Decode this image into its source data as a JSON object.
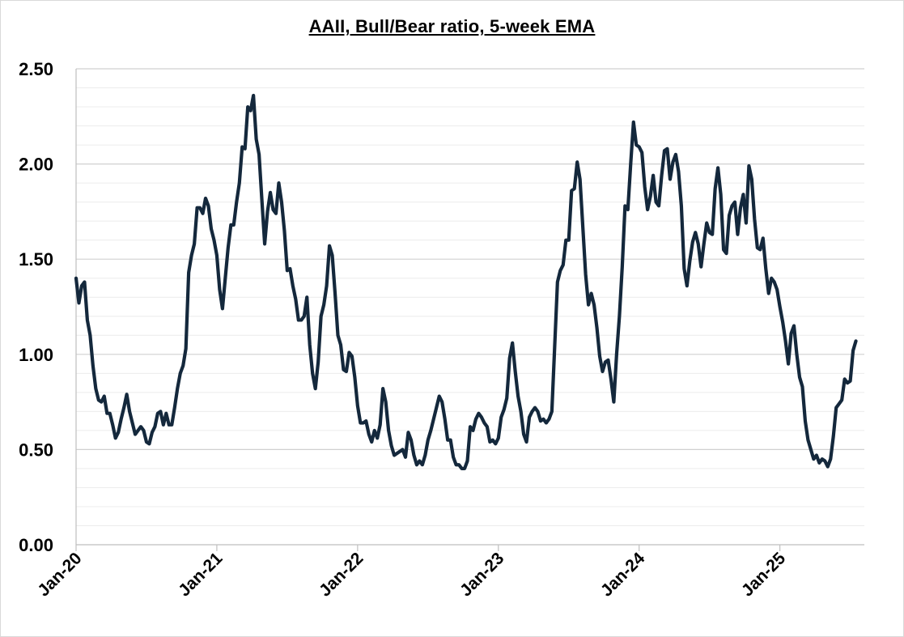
{
  "chart_data": {
    "type": "line",
    "title": "AAII, Bull/Bear ratio, 5-week EMA",
    "xlabel": "",
    "ylabel": "",
    "ylim": [
      0,
      2.5
    ],
    "yticks": [
      "0.00",
      "0.50",
      "1.00",
      "1.50",
      "2.00",
      "2.50"
    ],
    "xticks": [
      "Jan-20",
      "Jan-21",
      "Jan-22",
      "Jan-23",
      "Jan-24",
      "Jan-25"
    ],
    "x_start_year": 2020,
    "x_end_year": 2025.6,
    "line_color": "#14283c",
    "grid": true,
    "series": [
      {
        "name": "Bull/Bear ratio, 5-week EMA",
        "points": [
          [
            2020.0,
            1.4
          ],
          [
            2020.02,
            1.27
          ],
          [
            2020.04,
            1.36
          ],
          [
            2020.06,
            1.38
          ],
          [
            2020.08,
            1.18
          ],
          [
            2020.1,
            1.1
          ],
          [
            2020.12,
            0.94
          ],
          [
            2020.14,
            0.82
          ],
          [
            2020.16,
            0.76
          ],
          [
            2020.18,
            0.75
          ],
          [
            2020.2,
            0.78
          ],
          [
            2020.22,
            0.69
          ],
          [
            2020.24,
            0.69
          ],
          [
            2020.26,
            0.63
          ],
          [
            2020.28,
            0.56
          ],
          [
            2020.3,
            0.59
          ],
          [
            2020.32,
            0.66
          ],
          [
            2020.34,
            0.72
          ],
          [
            2020.36,
            0.79
          ],
          [
            2020.38,
            0.7
          ],
          [
            2020.4,
            0.64
          ],
          [
            2020.42,
            0.58
          ],
          [
            2020.44,
            0.6
          ],
          [
            2020.46,
            0.62
          ],
          [
            2020.48,
            0.6
          ],
          [
            2020.5,
            0.54
          ],
          [
            2020.52,
            0.53
          ],
          [
            2020.54,
            0.59
          ],
          [
            2020.56,
            0.62
          ],
          [
            2020.58,
            0.69
          ],
          [
            2020.6,
            0.7
          ],
          [
            2020.62,
            0.63
          ],
          [
            2020.64,
            0.69
          ],
          [
            2020.66,
            0.63
          ],
          [
            2020.68,
            0.63
          ],
          [
            2020.7,
            0.72
          ],
          [
            2020.72,
            0.82
          ],
          [
            2020.74,
            0.9
          ],
          [
            2020.76,
            0.94
          ],
          [
            2020.78,
            1.03
          ],
          [
            2020.8,
            1.43
          ],
          [
            2020.82,
            1.52
          ],
          [
            2020.84,
            1.58
          ],
          [
            2020.86,
            1.77
          ],
          [
            2020.88,
            1.77
          ],
          [
            2020.9,
            1.74
          ],
          [
            2020.92,
            1.82
          ],
          [
            2020.94,
            1.78
          ],
          [
            2020.96,
            1.66
          ],
          [
            2020.98,
            1.6
          ],
          [
            2021.0,
            1.52
          ],
          [
            2021.02,
            1.34
          ],
          [
            2021.04,
            1.24
          ],
          [
            2021.06,
            1.4
          ],
          [
            2021.08,
            1.56
          ],
          [
            2021.1,
            1.68
          ],
          [
            2021.12,
            1.68
          ],
          [
            2021.14,
            1.8
          ],
          [
            2021.16,
            1.9
          ],
          [
            2021.18,
            2.09
          ],
          [
            2021.2,
            2.08
          ],
          [
            2021.22,
            2.3
          ],
          [
            2021.24,
            2.28
          ],
          [
            2021.26,
            2.36
          ],
          [
            2021.28,
            2.13
          ],
          [
            2021.3,
            2.05
          ],
          [
            2021.32,
            1.81
          ],
          [
            2021.34,
            1.58
          ],
          [
            2021.36,
            1.75
          ],
          [
            2021.38,
            1.85
          ],
          [
            2021.4,
            1.76
          ],
          [
            2021.42,
            1.74
          ],
          [
            2021.44,
            1.9
          ],
          [
            2021.46,
            1.8
          ],
          [
            2021.48,
            1.65
          ],
          [
            2021.5,
            1.44
          ],
          [
            2021.52,
            1.45
          ],
          [
            2021.54,
            1.36
          ],
          [
            2021.56,
            1.29
          ],
          [
            2021.58,
            1.18
          ],
          [
            2021.6,
            1.18
          ],
          [
            2021.62,
            1.2
          ],
          [
            2021.64,
            1.3
          ],
          [
            2021.66,
            1.05
          ],
          [
            2021.68,
            0.9
          ],
          [
            2021.7,
            0.82
          ],
          [
            2021.72,
            0.96
          ],
          [
            2021.74,
            1.2
          ],
          [
            2021.76,
            1.26
          ],
          [
            2021.78,
            1.36
          ],
          [
            2021.8,
            1.57
          ],
          [
            2021.82,
            1.52
          ],
          [
            2021.84,
            1.32
          ],
          [
            2021.86,
            1.1
          ],
          [
            2021.88,
            1.05
          ],
          [
            2021.9,
            0.92
          ],
          [
            2021.92,
            0.91
          ],
          [
            2021.94,
            1.01
          ],
          [
            2021.96,
            0.99
          ],
          [
            2021.98,
            0.88
          ],
          [
            2022.0,
            0.73
          ],
          [
            2022.02,
            0.64
          ],
          [
            2022.04,
            0.64
          ],
          [
            2022.06,
            0.65
          ],
          [
            2022.08,
            0.58
          ],
          [
            2022.1,
            0.54
          ],
          [
            2022.12,
            0.6
          ],
          [
            2022.14,
            0.56
          ],
          [
            2022.16,
            0.63
          ],
          [
            2022.18,
            0.82
          ],
          [
            2022.2,
            0.75
          ],
          [
            2022.22,
            0.6
          ],
          [
            2022.24,
            0.52
          ],
          [
            2022.26,
            0.47
          ],
          [
            2022.28,
            0.48
          ],
          [
            2022.3,
            0.49
          ],
          [
            2022.32,
            0.5
          ],
          [
            2022.34,
            0.46
          ],
          [
            2022.36,
            0.59
          ],
          [
            2022.38,
            0.55
          ],
          [
            2022.4,
            0.47
          ],
          [
            2022.42,
            0.42
          ],
          [
            2022.44,
            0.44
          ],
          [
            2022.46,
            0.42
          ],
          [
            2022.48,
            0.47
          ],
          [
            2022.5,
            0.55
          ],
          [
            2022.52,
            0.6
          ],
          [
            2022.54,
            0.66
          ],
          [
            2022.56,
            0.72
          ],
          [
            2022.58,
            0.78
          ],
          [
            2022.6,
            0.75
          ],
          [
            2022.62,
            0.66
          ],
          [
            2022.64,
            0.55
          ],
          [
            2022.66,
            0.55
          ],
          [
            2022.68,
            0.46
          ],
          [
            2022.7,
            0.42
          ],
          [
            2022.72,
            0.42
          ],
          [
            2022.74,
            0.4
          ],
          [
            2022.76,
            0.4
          ],
          [
            2022.78,
            0.44
          ],
          [
            2022.8,
            0.62
          ],
          [
            2022.82,
            0.6
          ],
          [
            2022.84,
            0.66
          ],
          [
            2022.86,
            0.69
          ],
          [
            2022.88,
            0.67
          ],
          [
            2022.9,
            0.64
          ],
          [
            2022.92,
            0.62
          ],
          [
            2022.94,
            0.54
          ],
          [
            2022.96,
            0.55
          ],
          [
            2022.98,
            0.53
          ],
          [
            2023.0,
            0.56
          ],
          [
            2023.02,
            0.67
          ],
          [
            2023.04,
            0.71
          ],
          [
            2023.06,
            0.77
          ],
          [
            2023.08,
            0.98
          ],
          [
            2023.1,
            1.06
          ],
          [
            2023.12,
            0.91
          ],
          [
            2023.14,
            0.78
          ],
          [
            2023.16,
            0.7
          ],
          [
            2023.18,
            0.58
          ],
          [
            2023.2,
            0.54
          ],
          [
            2023.22,
            0.67
          ],
          [
            2023.24,
            0.7
          ],
          [
            2023.26,
            0.72
          ],
          [
            2023.28,
            0.7
          ],
          [
            2023.3,
            0.65
          ],
          [
            2023.32,
            0.66
          ],
          [
            2023.34,
            0.64
          ],
          [
            2023.36,
            0.66
          ],
          [
            2023.38,
            0.7
          ],
          [
            2023.4,
            1.04
          ],
          [
            2023.42,
            1.38
          ],
          [
            2023.44,
            1.44
          ],
          [
            2023.46,
            1.47
          ],
          [
            2023.48,
            1.6
          ],
          [
            2023.5,
            1.6
          ],
          [
            2023.52,
            1.86
          ],
          [
            2023.54,
            1.87
          ],
          [
            2023.56,
            2.01
          ],
          [
            2023.58,
            1.92
          ],
          [
            2023.6,
            1.67
          ],
          [
            2023.62,
            1.42
          ],
          [
            2023.64,
            1.26
          ],
          [
            2023.66,
            1.32
          ],
          [
            2023.68,
            1.26
          ],
          [
            2023.7,
            1.14
          ],
          [
            2023.72,
            0.99
          ],
          [
            2023.74,
            0.91
          ],
          [
            2023.76,
            0.96
          ],
          [
            2023.78,
            0.97
          ],
          [
            2023.8,
            0.87
          ],
          [
            2023.82,
            0.75
          ],
          [
            2023.84,
            1.0
          ],
          [
            2023.86,
            1.2
          ],
          [
            2023.88,
            1.46
          ],
          [
            2023.9,
            1.78
          ],
          [
            2023.92,
            1.76
          ],
          [
            2023.94,
            2.0
          ],
          [
            2023.96,
            2.22
          ],
          [
            2023.98,
            2.1
          ],
          [
            2024.0,
            2.09
          ],
          [
            2024.02,
            2.06
          ],
          [
            2024.04,
            1.88
          ],
          [
            2024.06,
            1.76
          ],
          [
            2024.08,
            1.83
          ],
          [
            2024.1,
            1.94
          ],
          [
            2024.12,
            1.8
          ],
          [
            2024.14,
            1.78
          ],
          [
            2024.16,
            1.94
          ],
          [
            2024.18,
            2.07
          ],
          [
            2024.2,
            2.08
          ],
          [
            2024.22,
            1.92
          ],
          [
            2024.24,
            2.01
          ],
          [
            2024.26,
            2.05
          ],
          [
            2024.28,
            1.96
          ],
          [
            2024.3,
            1.78
          ],
          [
            2024.32,
            1.45
          ],
          [
            2024.34,
            1.36
          ],
          [
            2024.36,
            1.49
          ],
          [
            2024.38,
            1.59
          ],
          [
            2024.4,
            1.64
          ],
          [
            2024.42,
            1.58
          ],
          [
            2024.44,
            1.46
          ],
          [
            2024.46,
            1.58
          ],
          [
            2024.48,
            1.69
          ],
          [
            2024.5,
            1.64
          ],
          [
            2024.52,
            1.63
          ],
          [
            2024.54,
            1.87
          ],
          [
            2024.56,
            1.98
          ],
          [
            2024.58,
            1.84
          ],
          [
            2024.6,
            1.55
          ],
          [
            2024.62,
            1.53
          ],
          [
            2024.64,
            1.73
          ],
          [
            2024.66,
            1.78
          ],
          [
            2024.68,
            1.8
          ],
          [
            2024.7,
            1.63
          ],
          [
            2024.72,
            1.77
          ],
          [
            2024.74,
            1.84
          ],
          [
            2024.76,
            1.69
          ],
          [
            2024.78,
            1.99
          ],
          [
            2024.8,
            1.92
          ],
          [
            2024.82,
            1.71
          ],
          [
            2024.84,
            1.56
          ],
          [
            2024.86,
            1.55
          ],
          [
            2024.88,
            1.61
          ],
          [
            2024.9,
            1.45
          ],
          [
            2024.92,
            1.32
          ],
          [
            2024.94,
            1.4
          ],
          [
            2024.96,
            1.38
          ],
          [
            2024.98,
            1.34
          ],
          [
            2025.0,
            1.25
          ],
          [
            2025.02,
            1.17
          ],
          [
            2025.04,
            1.07
          ],
          [
            2025.06,
            0.95
          ],
          [
            2025.08,
            1.11
          ],
          [
            2025.1,
            1.15
          ],
          [
            2025.12,
            1.0
          ],
          [
            2025.14,
            0.88
          ],
          [
            2025.16,
            0.83
          ],
          [
            2025.18,
            0.65
          ],
          [
            2025.2,
            0.55
          ],
          [
            2025.22,
            0.5
          ],
          [
            2025.24,
            0.45
          ],
          [
            2025.26,
            0.47
          ],
          [
            2025.28,
            0.43
          ],
          [
            2025.3,
            0.45
          ],
          [
            2025.32,
            0.44
          ],
          [
            2025.34,
            0.41
          ],
          [
            2025.36,
            0.45
          ],
          [
            2025.38,
            0.57
          ],
          [
            2025.4,
            0.72
          ],
          [
            2025.42,
            0.74
          ],
          [
            2025.44,
            0.76
          ],
          [
            2025.46,
            0.87
          ],
          [
            2025.48,
            0.85
          ],
          [
            2025.5,
            0.86
          ],
          [
            2025.52,
            1.02
          ],
          [
            2025.54,
            1.07
          ]
        ]
      }
    ]
  }
}
